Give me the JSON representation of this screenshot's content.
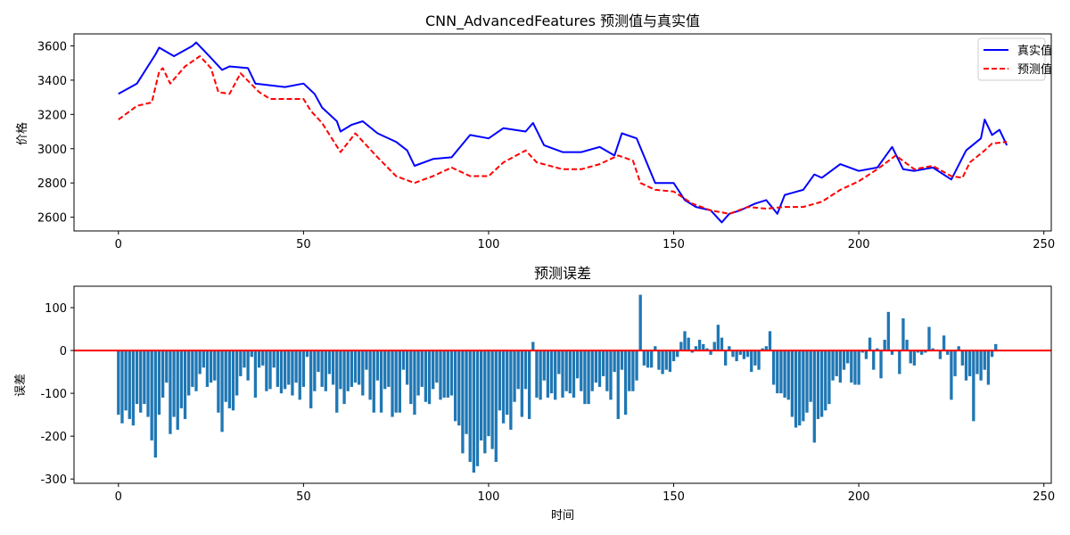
{
  "chart_data": [
    {
      "type": "line",
      "title": "CNN_AdvancedFeatures 预测值与真实值",
      "xlabel": "",
      "ylabel": "价格",
      "xlim": [
        -12,
        252
      ],
      "ylim": [
        2520,
        3670
      ],
      "xticks": [
        0,
        50,
        100,
        150,
        200,
        250
      ],
      "yticks": [
        2600,
        2800,
        3000,
        3200,
        3400,
        3600
      ],
      "legend": {
        "placement": "top-right"
      },
      "series": [
        {
          "name": "真实值",
          "color": "#0000ff",
          "style": "solid",
          "x": [
            0,
            5,
            10,
            11,
            15,
            20,
            21,
            25,
            28,
            30,
            35,
            37,
            45,
            50,
            53,
            55,
            59,
            60,
            63,
            66,
            70,
            75,
            78,
            80,
            85,
            90,
            95,
            100,
            104,
            110,
            112,
            115,
            120,
            125,
            130,
            134,
            136,
            140,
            145,
            150,
            153,
            156,
            160,
            163,
            165,
            168,
            172,
            175,
            178,
            180,
            185,
            188,
            190,
            195,
            200,
            205,
            209,
            212,
            215,
            220,
            225,
            229,
            233,
            234,
            236,
            238,
            240
          ],
          "y": [
            3320,
            3380,
            3550,
            3590,
            3540,
            3600,
            3620,
            3530,
            3460,
            3480,
            3470,
            3380,
            3360,
            3380,
            3320,
            3240,
            3160,
            3100,
            3140,
            3160,
            3090,
            3040,
            2990,
            2900,
            2940,
            2950,
            3080,
            3060,
            3120,
            3100,
            3150,
            3020,
            2980,
            2980,
            3010,
            2960,
            3090,
            3060,
            2800,
            2800,
            2700,
            2660,
            2640,
            2570,
            2620,
            2640,
            2680,
            2700,
            2620,
            2730,
            2760,
            2850,
            2830,
            2910,
            2870,
            2890,
            3010,
            2880,
            2870,
            2890,
            2820,
            2990,
            3060,
            3170,
            3080,
            3110,
            3020
          ]
        },
        {
          "name": "预测值",
          "color": "#ff0000",
          "style": "dashed",
          "x": [
            0,
            5,
            9,
            11,
            12,
            14,
            18,
            22,
            25,
            27,
            30,
            33,
            38,
            41,
            50,
            52,
            55,
            60,
            64,
            70,
            75,
            80,
            85,
            90,
            95,
            100,
            104,
            110,
            113,
            120,
            125,
            130,
            135,
            139,
            141,
            145,
            150,
            155,
            160,
            165,
            170,
            175,
            180,
            185,
            190,
            195,
            200,
            205,
            210,
            215,
            220,
            225,
            228,
            230,
            234,
            236,
            240
          ],
          "y": [
            3170,
            3250,
            3270,
            3450,
            3470,
            3380,
            3480,
            3540,
            3470,
            3330,
            3320,
            3440,
            3330,
            3290,
            3290,
            3220,
            3150,
            2980,
            3090,
            2950,
            2840,
            2800,
            2840,
            2890,
            2840,
            2840,
            2920,
            2990,
            2920,
            2880,
            2880,
            2910,
            2960,
            2930,
            2800,
            2760,
            2750,
            2680,
            2640,
            2620,
            2660,
            2650,
            2660,
            2660,
            2690,
            2760,
            2810,
            2880,
            2960,
            2880,
            2900,
            2840,
            2830,
            2920,
            2990,
            3030,
            3040
          ]
        }
      ]
    },
    {
      "type": "bar",
      "title": "预测误差",
      "xlabel": "时间",
      "ylabel": "误差",
      "xlim": [
        -12,
        252
      ],
      "ylim": [
        -310,
        150
      ],
      "xticks": [
        0,
        50,
        100,
        150,
        200,
        250
      ],
      "yticks": [
        -300,
        -200,
        -100,
        0,
        100
      ],
      "zero_line_color": "#ff0000",
      "bar_color": "#1f77b4",
      "x_start": 0,
      "values": [
        -150,
        -170,
        -140,
        -160,
        -175,
        -125,
        -145,
        -125,
        -155,
        -210,
        -250,
        -150,
        -110,
        -75,
        -195,
        -155,
        -185,
        -135,
        -160,
        -105,
        -85,
        -95,
        -55,
        -40,
        -85,
        -75,
        -70,
        -145,
        -190,
        -120,
        -135,
        -140,
        -105,
        -60,
        -40,
        -70,
        -15,
        -110,
        -40,
        -35,
        -95,
        -90,
        -40,
        -85,
        -100,
        -90,
        -80,
        -105,
        -75,
        -115,
        -85,
        -15,
        -135,
        -95,
        -50,
        -85,
        -95,
        -55,
        -80,
        -145,
        -90,
        -125,
        -95,
        -85,
        -75,
        -80,
        -105,
        -45,
        -115,
        -145,
        -70,
        -145,
        -90,
        -85,
        -155,
        -145,
        -145,
        -45,
        -80,
        -125,
        -150,
        -105,
        -85,
        -120,
        -125,
        -90,
        -75,
        -115,
        -110,
        -110,
        -105,
        -165,
        -175,
        -240,
        -195,
        -260,
        -285,
        -270,
        -210,
        -240,
        -200,
        -230,
        -260,
        -140,
        -170,
        -150,
        -185,
        -120,
        -90,
        -155,
        -90,
        -160,
        20,
        -110,
        -115,
        -70,
        -110,
        -100,
        -115,
        -55,
        -110,
        -95,
        -100,
        -110,
        -65,
        -95,
        -125,
        -125,
        -95,
        -75,
        -85,
        -60,
        -95,
        -115,
        -50,
        -160,
        -45,
        -150,
        -95,
        -95,
        -70,
        130,
        -35,
        -40,
        -40,
        10,
        -45,
        -55,
        -45,
        -50,
        -25,
        -15,
        20,
        45,
        30,
        -5,
        10,
        25,
        15,
        5,
        -10,
        20,
        60,
        30,
        -35,
        10,
        -15,
        -25,
        -10,
        -20,
        -15,
        -50,
        -35,
        -45,
        5,
        10,
        45,
        -80,
        -100,
        -100,
        -110,
        -115,
        -155,
        -180,
        -175,
        -165,
        -145,
        -120,
        -215,
        -160,
        -155,
        -140,
        -125,
        -70,
        -60,
        -75,
        -45,
        -30,
        -75,
        -80,
        -80,
        -5,
        -20,
        30,
        -45,
        5,
        -65,
        25,
        90,
        -10,
        0,
        -55,
        75,
        25,
        -30,
        -35,
        -5,
        -10,
        -5,
        55,
        5,
        0,
        -20,
        35,
        -10,
        -115,
        -60,
        10,
        -35,
        -70,
        -60,
        -165,
        -55,
        -70,
        -45,
        -80,
        -15,
        15
      ]
    }
  ]
}
